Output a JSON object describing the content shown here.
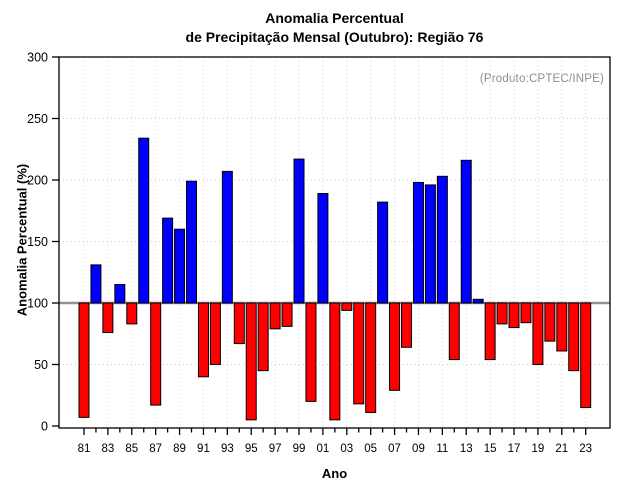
{
  "title": {
    "line1": "Anomalia Percentual",
    "line2": "de Precipitação Mensal (Outubro): Região 76"
  },
  "annotation": "(Produto:CPTEC/INPE)",
  "chart_data": {
    "type": "bar",
    "title": "Anomalia Percentual de Precipitação Mensal (Outubro): Região 76",
    "xlabel": "Ano",
    "ylabel": "Anomalia Percentual (%)",
    "ylim": [
      0,
      300
    ],
    "yticks": [
      0,
      50,
      100,
      150,
      200,
      250,
      300
    ],
    "baseline": 100,
    "grid": true,
    "legend": "none",
    "x_label_every": 2,
    "categories": [
      "81",
      "82",
      "83",
      "84",
      "85",
      "86",
      "87",
      "88",
      "89",
      "90",
      "91",
      "92",
      "93",
      "94",
      "95",
      "96",
      "97",
      "98",
      "99",
      "00",
      "01",
      "02",
      "03",
      "04",
      "05",
      "06",
      "07",
      "08",
      "09",
      "10",
      "11",
      "12",
      "13",
      "14",
      "15",
      "16",
      "17",
      "18",
      "19",
      "20",
      "21",
      "22",
      "23"
    ],
    "values": [
      7,
      131,
      76,
      115,
      83,
      234,
      17,
      169,
      160,
      199,
      40,
      50,
      207,
      67,
      5,
      45,
      79,
      81,
      217,
      20,
      189,
      5,
      94,
      18,
      11,
      182,
      29,
      64,
      198,
      196,
      203,
      54,
      216,
      103,
      54,
      83,
      80,
      84,
      50,
      69,
      61,
      45,
      15
    ],
    "colors": {
      "above_baseline": "#0000ff",
      "below_baseline": "#ff0000",
      "bar_border": "#000000",
      "baseline_line": "#919191",
      "gridline": "#cfcfcf",
      "frame": "#000000",
      "tick_text": "#000000"
    }
  }
}
